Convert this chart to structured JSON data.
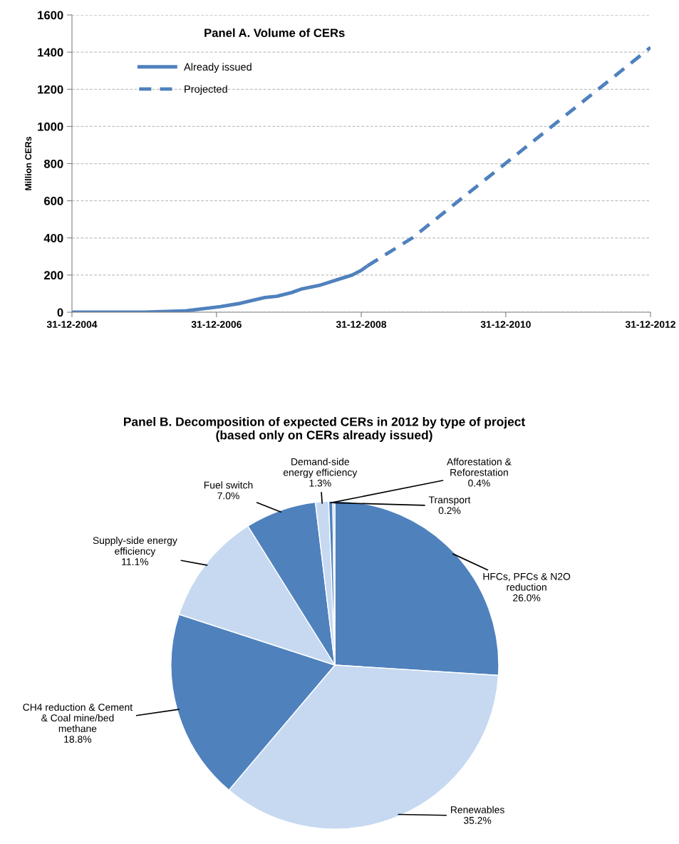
{
  "chart_data": [
    {
      "type": "line",
      "title": "Panel A. Volume of CERs",
      "ylabel": "Million CERs",
      "xlim": [
        "2004-12-31",
        "2012-12-31"
      ],
      "xticks": [
        {
          "value": "2004-12-31",
          "label": "31-12-2004"
        },
        {
          "value": "2006-12-31",
          "label": "31-12-2006"
        },
        {
          "value": "2008-12-31",
          "label": "31-12-2008"
        },
        {
          "value": "2010-12-31",
          "label": "31-12-2010"
        },
        {
          "value": "2012-12-31",
          "label": "31-12-2012"
        }
      ],
      "ylim": [
        0,
        1600
      ],
      "yticks": [
        0,
        200,
        400,
        600,
        800,
        1000,
        1200,
        1400,
        1600
      ],
      "grid": "y",
      "legend": "top left",
      "marker": "none",
      "series": [
        {
          "name": "Already issued",
          "color": "#4f81bd",
          "line_style": "solid",
          "x": [
            "2004-12-31",
            "2005-12-31",
            "2006-08-01",
            "2007-01-20",
            "2007-05-01",
            "2007-09-01",
            "2007-11-01",
            "2008-01-15",
            "2008-03-01",
            "2008-06-01",
            "2008-09-01",
            "2008-11-15",
            "2009-01-01",
            "2009-02-01"
          ],
          "values": [
            0,
            0,
            8,
            30,
            48,
            79,
            86,
            106,
            124,
            144,
            175,
            200,
            226,
            250
          ]
        },
        {
          "name": "Projected",
          "color": "#4f81bd",
          "line_style": "dashed",
          "x": [
            "2009-02-01",
            "2009-09-15",
            "2012-12-31"
          ],
          "values": [
            250,
            400,
            1425
          ]
        }
      ]
    },
    {
      "type": "pie",
      "title": "Panel B. Decomposition of expected CERs in 2012 by type of project\n(based only on CERs already issued)",
      "categories": [
        "HFCs, PFCs & N2O\nreduction",
        "Renewables",
        "CH4 reduction & Cement\n& Coal mine/bed\nmethane",
        "Supply-side energy\nefficiency",
        "Fuel switch",
        "Demand-side\nenergy efficiency",
        "Afforestation &\nReforestation",
        "Transport"
      ],
      "values": [
        26.0,
        35.2,
        18.8,
        11.1,
        7.0,
        1.3,
        0.4,
        0.2
      ],
      "value_labels": [
        "26.0%",
        "35.2%",
        "18.8%",
        "11.1%",
        "7.0%",
        "1.3%",
        "0.4%",
        "0.2%"
      ],
      "colors": [
        "#4f81bd",
        "#c6d9f1",
        "#4f81bd",
        "#c6d9f1",
        "#4f81bd",
        "#c6d9f1",
        "#4f81bd",
        "#c6d9f1"
      ]
    }
  ]
}
